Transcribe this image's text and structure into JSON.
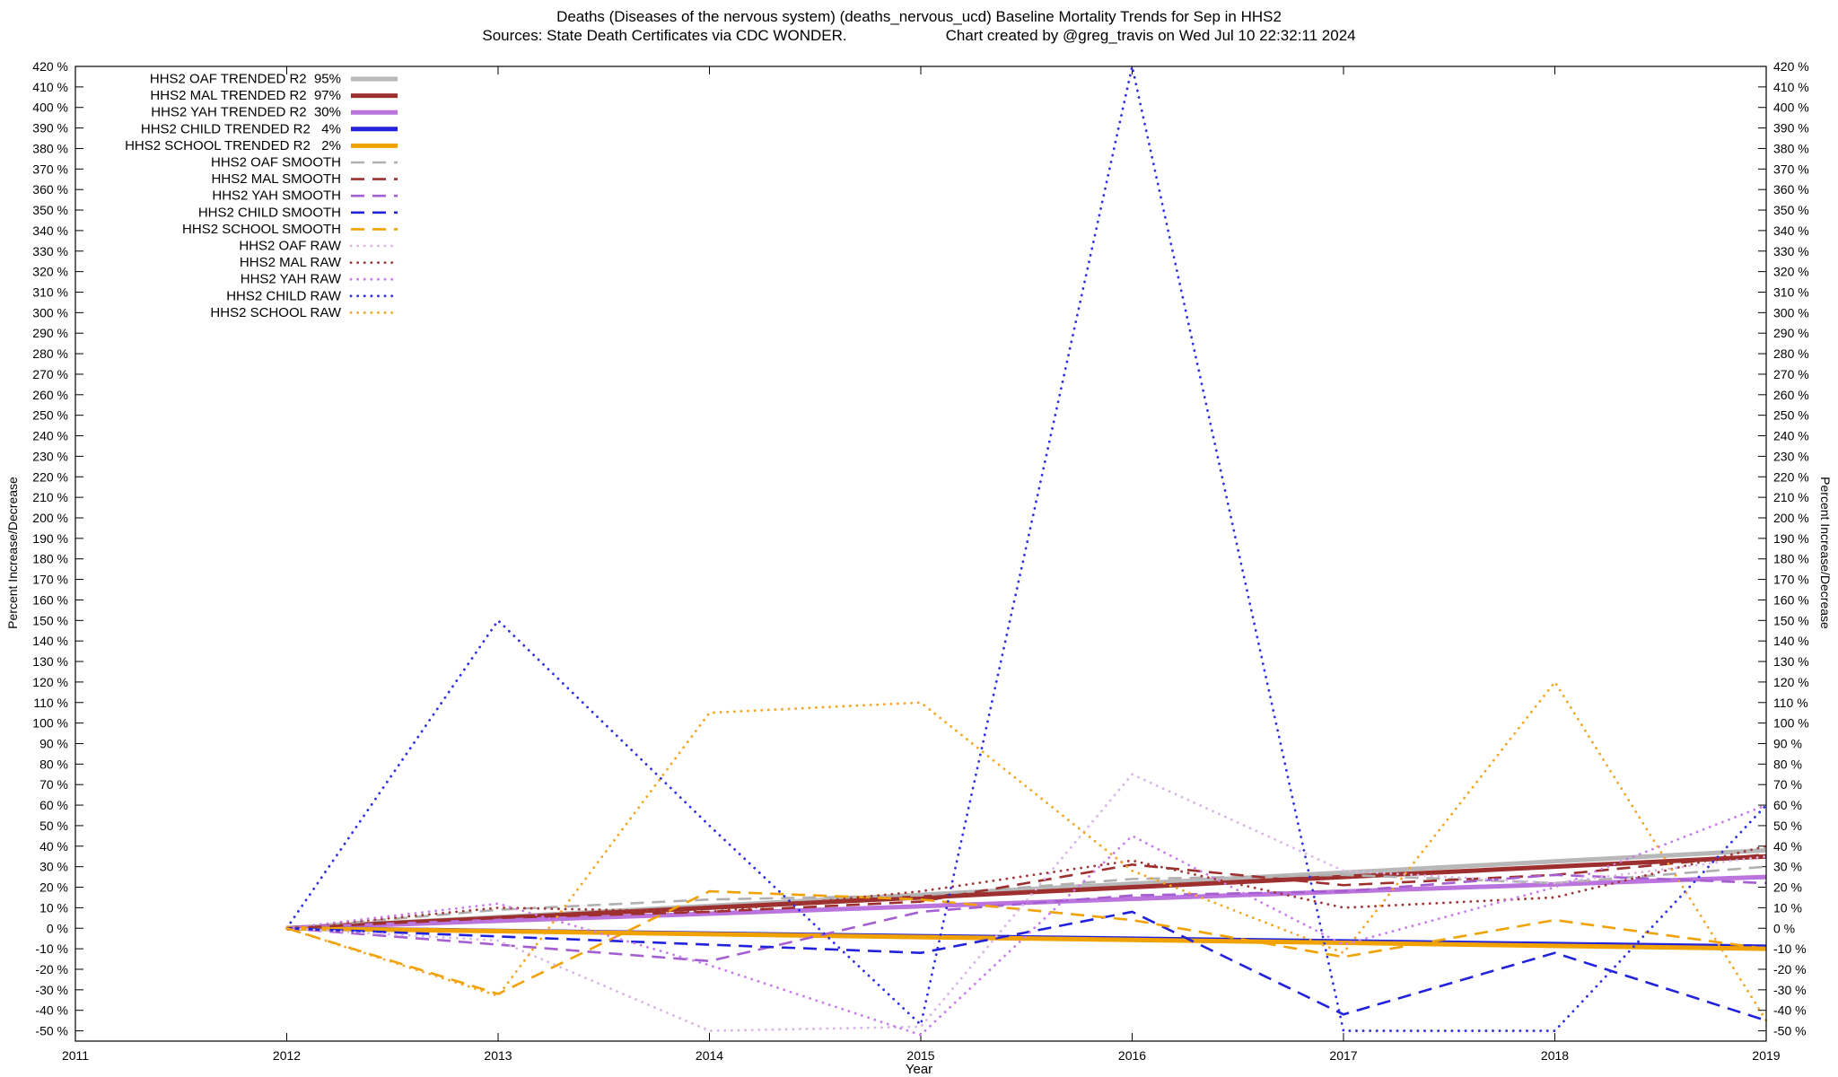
{
  "chart_data": {
    "type": "line",
    "title": "Deaths (Diseases of the nervous system) (deaths_nervous_ucd)  Baseline Mortality Trends for Sep in HHS2",
    "sources": "Sources: State Death Certificates via CDC WONDER.",
    "credit": "Chart created by @greg_travis on Wed Jul 10 22:32:11 2024",
    "xlabel": "Year",
    "ylabel": "Percent Increase/Decrease",
    "xlim": [
      2011,
      2019
    ],
    "ylim": [
      -55,
      420
    ],
    "xticks": [
      2011,
      2012,
      2013,
      2014,
      2015,
      2016,
      2017,
      2018,
      2019
    ],
    "yticks": {
      "min": -50,
      "max": 420,
      "step": 10,
      "suffix": " %"
    },
    "legend_position": "top-left",
    "grid": false,
    "x": [
      2012,
      2013,
      2014,
      2015,
      2016,
      2017,
      2018,
      2019
    ],
    "series": [
      {
        "name": "HHS2 OAF TRENDED R2  95%",
        "kind": "trended",
        "color": "#b8b8b8",
        "style": "solid",
        "width": 5,
        "values": [
          0,
          5.4,
          10.9,
          16.3,
          21.7,
          27.1,
          32.6,
          38
        ]
      },
      {
        "name": "HHS2 MAL TRENDED R2  97%",
        "kind": "trended",
        "color": "#9e2f2f",
        "style": "solid",
        "width": 5,
        "values": [
          0,
          5,
          10,
          15,
          20,
          25,
          30,
          35
        ]
      },
      {
        "name": "HHS2 YAH TRENDED R2  30%",
        "kind": "trended",
        "color": "#bb73dd",
        "style": "solid",
        "width": 5,
        "values": [
          0,
          3.6,
          7.1,
          10.7,
          14.3,
          17.9,
          21.4,
          25
        ]
      },
      {
        "name": "HHS2 CHILD TRENDED R2   4%",
        "kind": "trended",
        "color": "#2222dd",
        "style": "solid",
        "width": 5,
        "values": [
          0,
          -1.3,
          -2.6,
          -3.9,
          -5.1,
          -6.4,
          -7.7,
          -9
        ]
      },
      {
        "name": "HHS2 SCHOOL TRENDED R2   2%",
        "kind": "trended",
        "color": "#f0a202",
        "style": "solid",
        "width": 5,
        "values": [
          0,
          -1.4,
          -2.9,
          -4.3,
          -5.7,
          -7.1,
          -8.6,
          -10
        ]
      },
      {
        "name": "HHS2 OAF SMOOTH",
        "kind": "smooth",
        "color": "#b0b0b0",
        "style": "dash",
        "width": 2.6,
        "values": [
          0,
          9,
          14,
          16,
          24,
          26,
          22,
          30
        ]
      },
      {
        "name": "HHS2 MAL SMOOTH",
        "kind": "smooth",
        "color": "#9e2f2f",
        "style": "dash",
        "width": 2.6,
        "values": [
          0,
          5,
          8,
          13,
          31,
          21,
          26,
          36
        ]
      },
      {
        "name": "HHS2 YAH SMOOTH",
        "kind": "smooth",
        "color": "#a55ed0",
        "style": "dash",
        "width": 2.6,
        "values": [
          0,
          -8,
          -16,
          8,
          16,
          18,
          26,
          22
        ]
      },
      {
        "name": "HHS2 CHILD SMOOTH",
        "kind": "smooth",
        "color": "#2222dd",
        "style": "dash",
        "width": 2.6,
        "values": [
          0,
          -4,
          -8,
          -12,
          8,
          -42,
          -12,
          -45
        ]
      },
      {
        "name": "HHS2 SCHOOL SMOOTH",
        "kind": "smooth",
        "color": "#f0a202",
        "style": "dash",
        "width": 2.6,
        "values": [
          0,
          -32,
          18,
          14,
          4,
          -14,
          4,
          -10
        ]
      },
      {
        "name": "HHS2 OAF RAW",
        "kind": "raw",
        "color": "#d8b5e8",
        "style": "dot",
        "width": 2.8,
        "values": [
          0,
          -6,
          -50,
          -48,
          75,
          28,
          22,
          35
        ]
      },
      {
        "name": "HHS2 MAL RAW",
        "kind": "raw",
        "color": "#a03838",
        "style": "dot",
        "width": 2.8,
        "values": [
          0,
          10,
          8,
          18,
          33,
          10,
          15,
          40
        ]
      },
      {
        "name": "HHS2 YAH RAW",
        "kind": "raw",
        "color": "#c87cf0",
        "style": "dot",
        "width": 2.8,
        "values": [
          0,
          12,
          -18,
          -52,
          45,
          -8,
          20,
          60
        ]
      },
      {
        "name": "HHS2 CHILD RAW",
        "kind": "raw",
        "color": "#2f2fe8",
        "style": "dot",
        "width": 2.8,
        "values": [
          0,
          150,
          50,
          -47,
          420,
          -50,
          -50,
          60
        ]
      },
      {
        "name": "HHS2 SCHOOL RAW",
        "kind": "raw",
        "color": "#f5a623",
        "style": "dot",
        "width": 2.8,
        "values": [
          0,
          -33,
          105,
          110,
          28,
          -12,
          120,
          -45
        ]
      }
    ]
  }
}
